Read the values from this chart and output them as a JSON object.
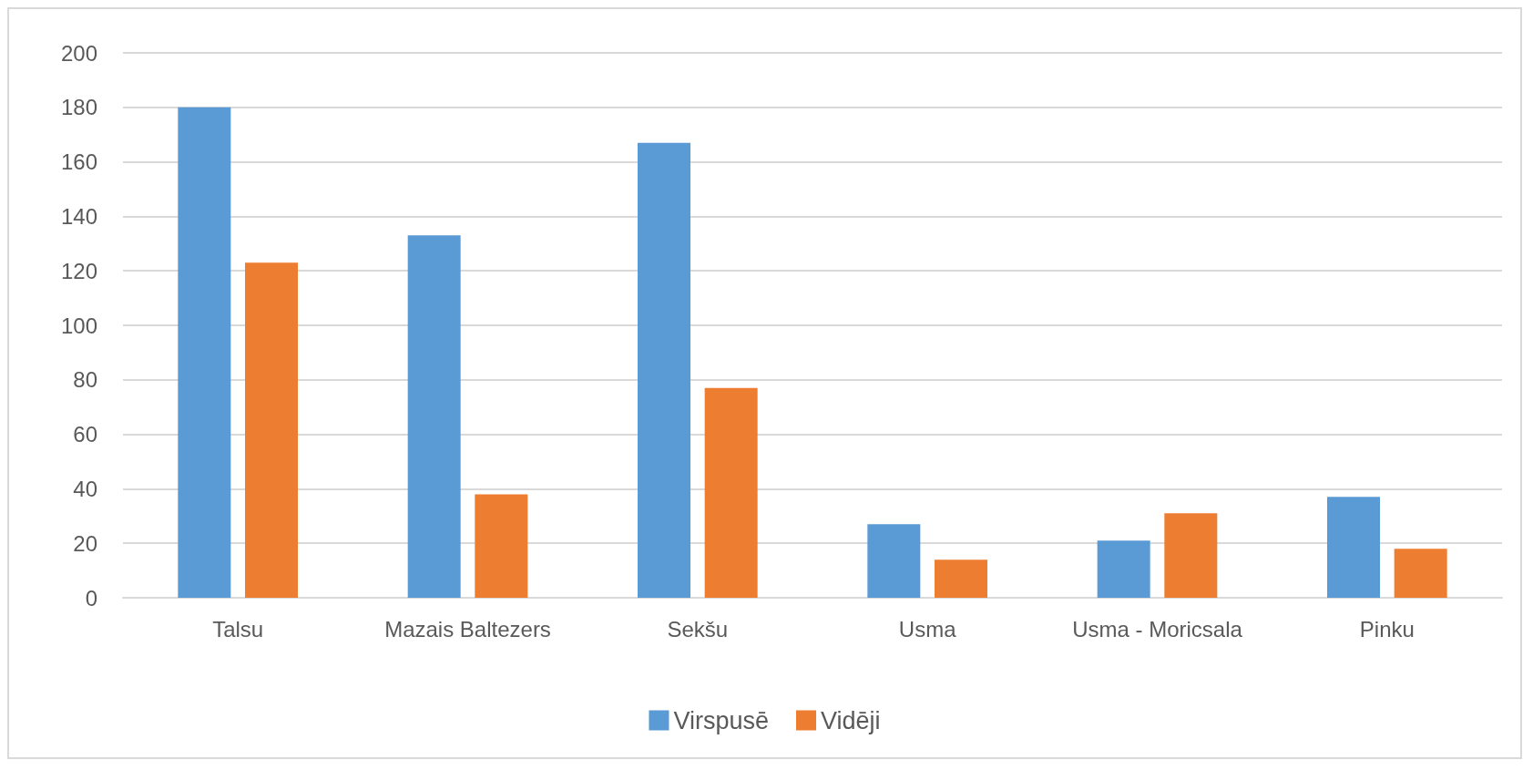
{
  "chart_data": {
    "type": "bar",
    "categories": [
      "Talsu",
      "Mazais Baltezers",
      "Sekšu",
      "Usma",
      "Usma - Moricsala",
      "Pinku"
    ],
    "series": [
      {
        "name": "Virspusē",
        "color": "#5b9bd5",
        "values": [
          180,
          133,
          167,
          27,
          21,
          37
        ]
      },
      {
        "name": "Vidēji",
        "color": "#ed7d31",
        "values": [
          123,
          38,
          77,
          14,
          31,
          18
        ]
      }
    ],
    "ylim": [
      0,
      200
    ],
    "yticks": [
      0,
      20,
      40,
      60,
      80,
      100,
      120,
      140,
      160,
      180,
      200
    ],
    "grid": "y",
    "legend": "bottom"
  }
}
